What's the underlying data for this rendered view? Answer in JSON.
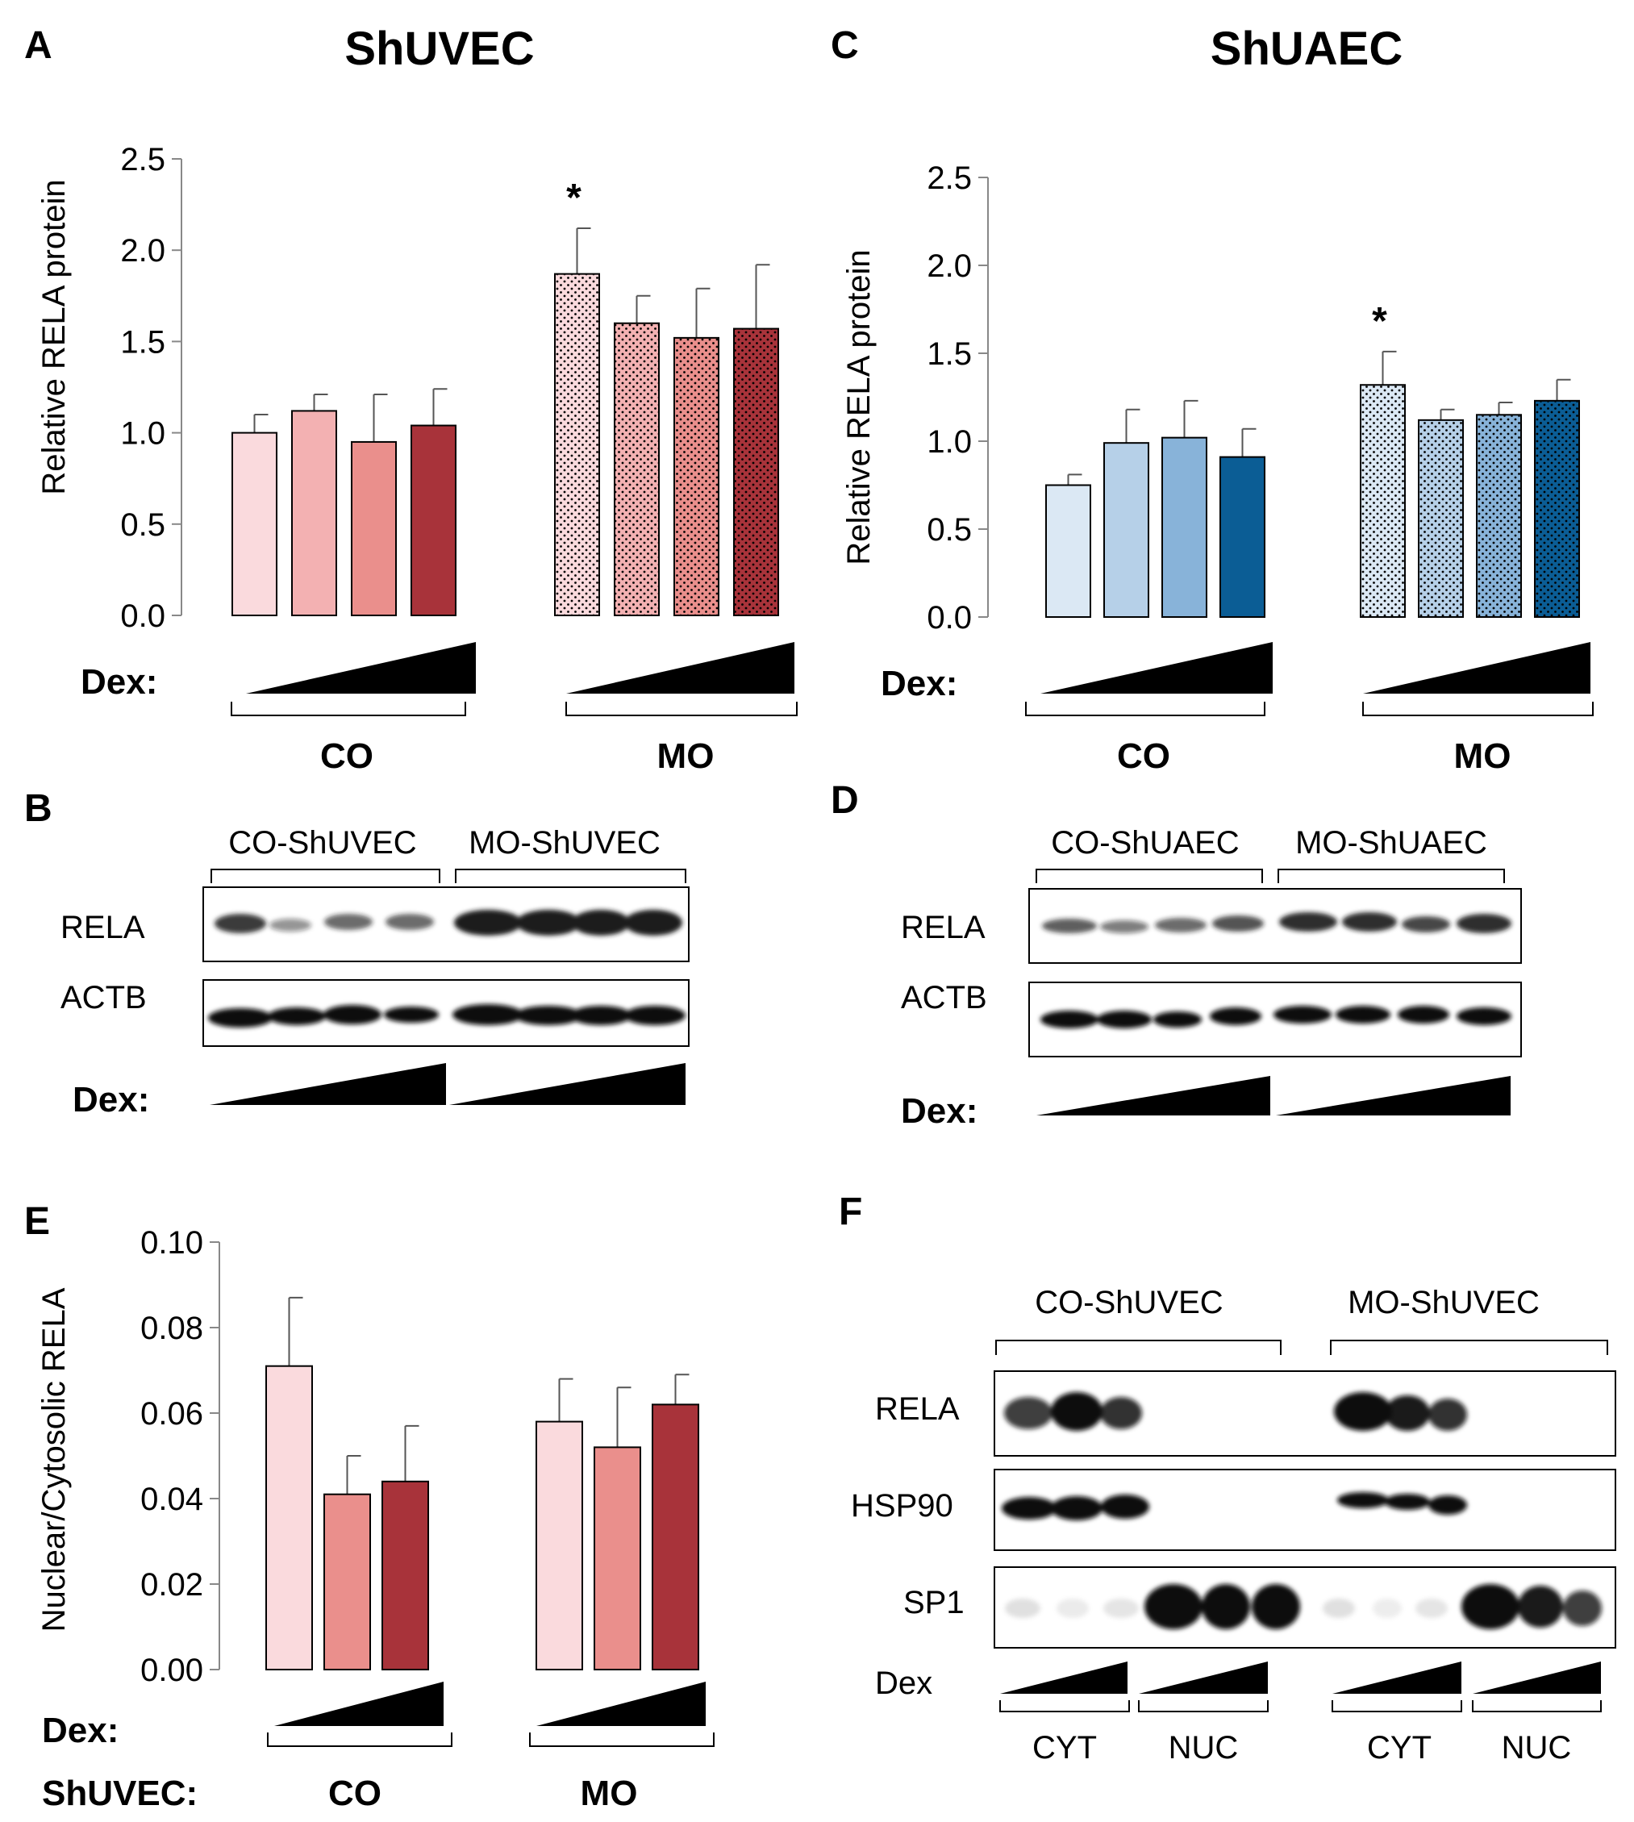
{
  "chart_data": [
    {
      "panel": "A",
      "type": "bar",
      "title": "ShUVEC",
      "ylabel": "Relative RELA protein",
      "ylim": [
        0,
        2.5
      ],
      "yticks": [
        "0.0",
        "0.5",
        "1.0",
        "1.5",
        "2.0",
        "2.5"
      ],
      "treatment_label": "Dex:",
      "groups": [
        {
          "name": "CO",
          "values": [
            1.0,
            1.12,
            0.95,
            1.04
          ],
          "errors": [
            0.1,
            0.09,
            0.26,
            0.2
          ],
          "colors": [
            "#fadadd",
            "#f3b1b2",
            "#ea8f8c",
            "#a8333a"
          ],
          "pattern": "solid"
        },
        {
          "name": "MO",
          "values": [
            1.87,
            1.6,
            1.52,
            1.57
          ],
          "errors": [
            0.25,
            0.15,
            0.27,
            0.35
          ],
          "colors": [
            "#fadadd",
            "#f3b1b2",
            "#ea8f8c",
            "#a8333a"
          ],
          "pattern": "dotted"
        }
      ],
      "annotations": [
        {
          "group": 1,
          "bar": 0,
          "text": "*"
        }
      ]
    },
    {
      "panel": "C",
      "type": "bar",
      "title": "ShUAEC",
      "ylabel": "Relative RELA protein",
      "ylim": [
        0,
        2.5
      ],
      "yticks": [
        "0.0",
        "0.5",
        "1.0",
        "1.5",
        "2.0",
        "2.5"
      ],
      "treatment_label": "Dex:",
      "groups": [
        {
          "name": "CO",
          "values": [
            0.75,
            0.99,
            1.02,
            0.91
          ],
          "errors": [
            0.06,
            0.19,
            0.21,
            0.16
          ],
          "colors": [
            "#dbe8f4",
            "#b6d0e8",
            "#88b3d9",
            "#0b5d95"
          ],
          "pattern": "solid"
        },
        {
          "name": "MO",
          "values": [
            1.32,
            1.12,
            1.15,
            1.23
          ],
          "errors": [
            0.19,
            0.06,
            0.07,
            0.12
          ],
          "colors": [
            "#dbe8f4",
            "#b6d0e8",
            "#88b3d9",
            "#0b5d95"
          ],
          "pattern": "dotted"
        }
      ],
      "annotations": [
        {
          "group": 1,
          "bar": 0,
          "text": "*"
        }
      ]
    },
    {
      "panel": "E",
      "type": "bar",
      "ylabel": "Nuclear/Cytosolic RELA",
      "ylim": [
        0,
        0.1
      ],
      "yticks": [
        "0.00",
        "0.02",
        "0.04",
        "0.06",
        "0.08",
        "0.10"
      ],
      "treatment_label": "Dex:",
      "cell_label": "ShUVEC:",
      "groups": [
        {
          "name": "CO",
          "values": [
            0.071,
            0.041,
            0.044
          ],
          "errors": [
            0.016,
            0.009,
            0.013
          ],
          "colors": [
            "#fadadd",
            "#ea8f8c",
            "#a8333a"
          ],
          "pattern": "solid"
        },
        {
          "name": "MO",
          "values": [
            0.058,
            0.052,
            0.062
          ],
          "errors": [
            0.01,
            0.014,
            0.007
          ],
          "colors": [
            "#fadadd",
            "#ea8f8c",
            "#a8333a"
          ],
          "pattern": "solid"
        }
      ]
    }
  ],
  "panel_labels": {
    "a": "A",
    "b": "B",
    "c": "C",
    "d": "D",
    "e": "E",
    "f": "F"
  },
  "blot_b": {
    "group_labels": [
      "CO-ShUVEC",
      "MO-ShUVEC"
    ],
    "rows": [
      "RELA",
      "ACTB"
    ],
    "dex": "Dex:"
  },
  "blot_d": {
    "group_labels": [
      "CO-ShUAEC",
      "MO-ShUAEC"
    ],
    "rows": [
      "RELA",
      "ACTB"
    ],
    "dex": "Dex:"
  },
  "blot_f": {
    "group_labels": [
      "CO-ShUVEC",
      "MO-ShUVEC"
    ],
    "rows": [
      "RELA",
      "HSP90",
      "SP1"
    ],
    "dex": "Dex",
    "fractions": [
      "CYT",
      "NUC",
      "CYT",
      "NUC"
    ]
  }
}
